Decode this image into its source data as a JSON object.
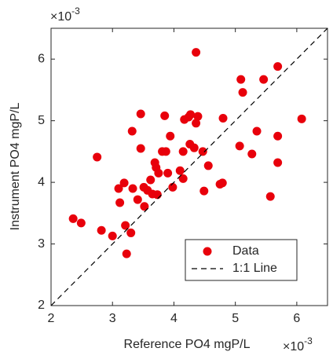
{
  "chart_data": {
    "type": "scatter",
    "x_label": "Reference PO4 mgP/L",
    "y_label": "Instrument PO4 mgP/L",
    "x_multiplier": {
      "base": "×10",
      "exponent": "-3"
    },
    "y_multiplier": {
      "base": "×10",
      "exponent": "-3"
    },
    "xlim": [
      2,
      6.5
    ],
    "ylim": [
      2,
      6.5
    ],
    "xticks": [
      2,
      3,
      4,
      5,
      6
    ],
    "yticks": [
      2,
      3,
      4,
      5,
      6
    ],
    "legend": "lower right",
    "series": [
      {
        "name": "Data",
        "color": "#e8000b",
        "x": [
          2.36,
          2.49,
          2.75,
          2.82,
          3.0,
          3.1,
          3.12,
          3.19,
          3.21,
          3.23,
          3.3,
          3.32,
          3.46,
          3.33,
          3.41,
          3.46,
          3.51,
          3.52,
          3.57,
          3.62,
          3.65,
          3.69,
          3.71,
          3.73,
          3.75,
          3.81,
          3.87,
          3.9,
          3.94,
          3.85,
          3.98,
          4.1,
          4.15,
          4.15,
          4.17,
          4.24,
          4.26,
          4.27,
          4.36,
          4.33,
          4.36,
          4.39,
          4.47,
          4.49,
          4.56,
          4.75,
          4.79,
          4.8,
          5.07,
          5.09,
          5.12,
          5.27,
          5.35,
          5.46,
          5.57,
          5.69,
          5.69,
          5.69,
          6.08
        ],
        "y": [
          3.41,
          3.34,
          4.41,
          3.22,
          3.13,
          3.9,
          3.67,
          3.99,
          3.3,
          2.84,
          3.18,
          4.83,
          5.11,
          3.9,
          3.72,
          4.55,
          3.92,
          3.61,
          3.87,
          4.04,
          3.81,
          4.32,
          4.24,
          3.8,
          4.15,
          4.5,
          4.5,
          4.15,
          4.75,
          5.08,
          3.92,
          4.19,
          4.06,
          4.5,
          5.02,
          5.06,
          4.62,
          5.1,
          6.11,
          4.56,
          4.96,
          5.07,
          4.5,
          3.86,
          4.27,
          3.97,
          3.99,
          5.04,
          4.59,
          5.67,
          5.46,
          4.46,
          4.83,
          5.67,
          3.77,
          5.88,
          4.75,
          4.32,
          5.03
        ]
      },
      {
        "name": "1:1 Line",
        "color": "#000000",
        "style": "dashed",
        "x": [
          2,
          6.5
        ],
        "y": [
          2,
          6.5
        ]
      }
    ]
  }
}
